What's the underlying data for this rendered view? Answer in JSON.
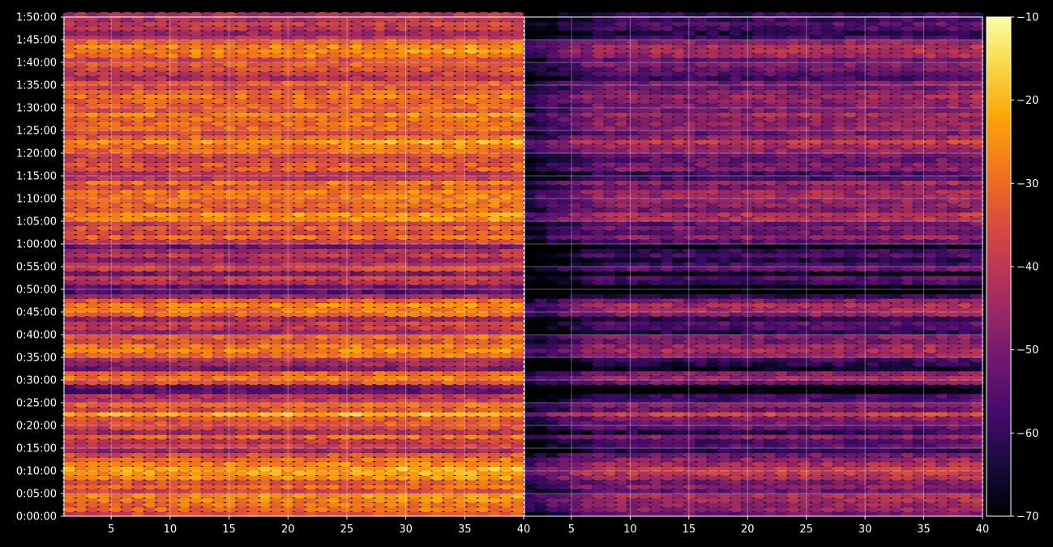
{
  "chart_data": {
    "type": "heatmap",
    "title": "",
    "xlabel": "",
    "ylabel": "",
    "grid": true,
    "colormap": "inferno",
    "background": "#000000",
    "panels": [
      {
        "name": "",
        "xlim": [
          1,
          40
        ],
        "xticks": [
          5,
          10,
          15,
          20,
          25,
          30,
          35,
          40
        ]
      },
      {
        "name": "",
        "xlim": [
          1,
          40
        ],
        "xticks": [
          5,
          10,
          15,
          20,
          25,
          30,
          35,
          40
        ]
      }
    ],
    "yticks": [
      "0:00:00",
      "0:05:00",
      "0:10:00",
      "0:15:00",
      "0:20:00",
      "0:25:00",
      "0:30:00",
      "0:35:00",
      "0:40:00",
      "0:45:00",
      "0:50:00",
      "0:55:00",
      "1:00:00",
      "1:05:00",
      "1:10:00",
      "1:15:00",
      "1:20:00",
      "1:25:00",
      "1:30:00",
      "1:35:00",
      "1:40:00",
      "1:45:00",
      "1:50:00"
    ],
    "ylim_minutes": [
      0,
      110
    ],
    "colorbar": {
      "range": [
        -70,
        -10
      ],
      "ticks": [
        -70,
        -60,
        -50,
        -40,
        -30,
        -20,
        -10
      ],
      "tick_labels": [
        "−70",
        "−60",
        "−50",
        "−40",
        "−30",
        "−20",
        "−10"
      ]
    },
    "row_levels": {
      "time_step_minutes": 1,
      "panel_offset_db": [
        0,
        -17
      ],
      "left_panel_db": [
        -35,
        -30,
        -29,
        -27,
        -25,
        -36,
        -30,
        -33,
        -25,
        -23,
        -22,
        -27,
        -30,
        -34,
        -45,
        -38,
        -40,
        -30,
        -44,
        -37,
        -34,
        -33,
        -20,
        -35,
        -30,
        -40,
        -41,
        -54,
        -53,
        -34,
        -28,
        -32,
        -50,
        -45,
        -42,
        -30,
        -26,
        -28,
        -34,
        -31,
        -45,
        -40,
        -38,
        -45,
        -31,
        -28,
        -26,
        -32,
        -44,
        -55,
        -53,
        -42,
        -38,
        -50,
        -36,
        -41,
        -46,
        -39,
        -43,
        -52,
        -38,
        -30,
        -36,
        -32,
        -37,
        -26,
        -24,
        -33,
        -30,
        -30,
        -28,
        -27,
        -34,
        -28,
        -40,
        -42,
        -32,
        -33,
        -36,
        -35,
        -30,
        -27,
        -22,
        -30,
        -35,
        -30,
        -30,
        -30,
        -26,
        -33,
        -32,
        -31,
        -28,
        -31,
        -35,
        -33,
        -42,
        -38,
        -35,
        -32,
        -36,
        -28,
        -25,
        -26,
        -30,
        -42,
        -45,
        -40,
        -38,
        -42,
        -42
      ]
    }
  }
}
